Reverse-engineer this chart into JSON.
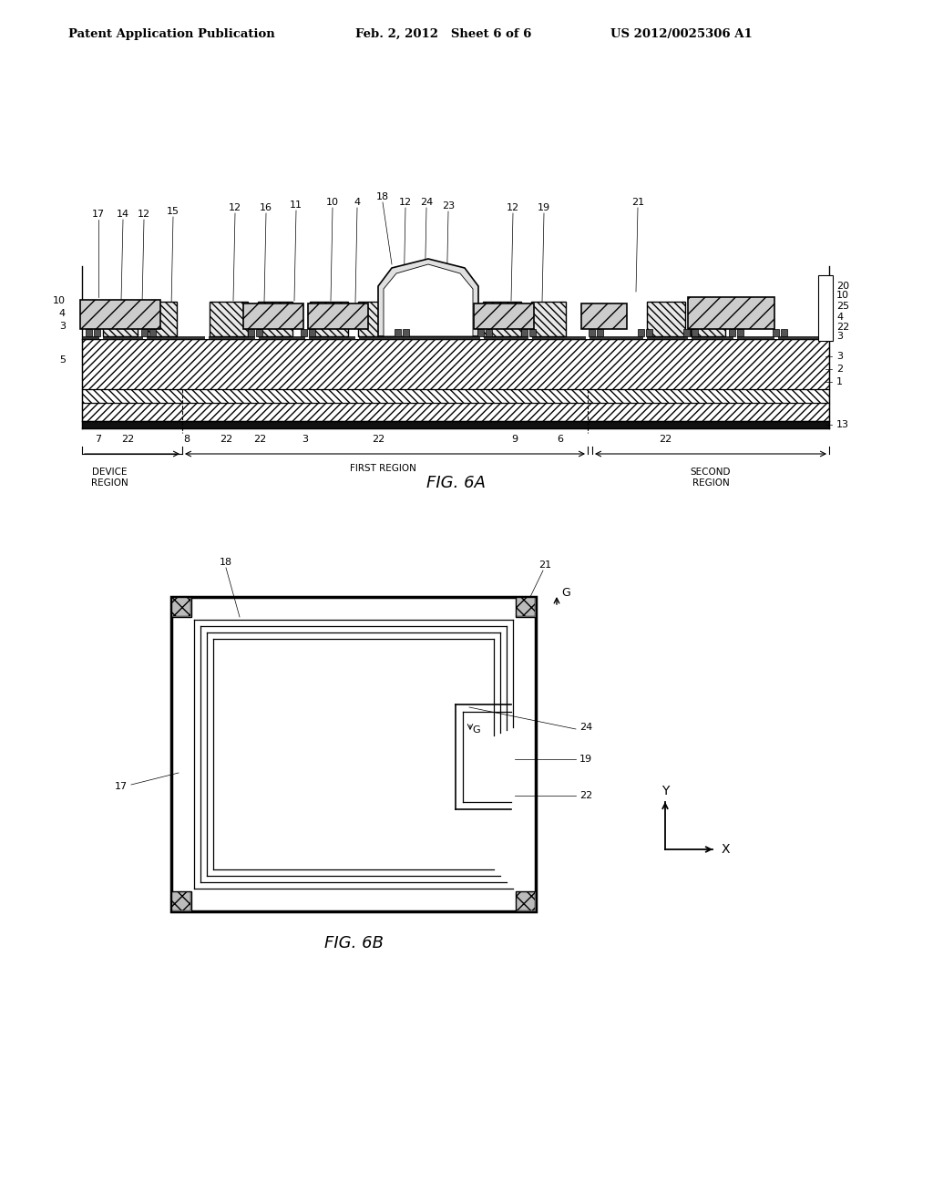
{
  "bg_color": "#ffffff",
  "header_left": "Patent Application Publication",
  "header_mid": "Feb. 2, 2012   Sheet 6 of 6",
  "header_right": "US 2012/0025306 A1",
  "fig6a_label": "FIG. 6A",
  "fig6b_label": "FIG. 6B",
  "line_color": "#000000"
}
